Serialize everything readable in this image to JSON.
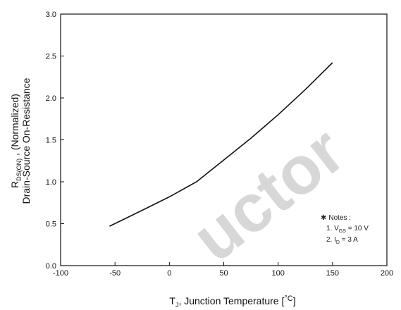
{
  "chart_data": {
    "type": "line",
    "xlabel": {
      "main": "T",
      "sub": "J",
      "rest": ", Junction Temperature [",
      "unit": "°C",
      "end": "]"
    },
    "ylabel": {
      "line1_main": "R",
      "line1_sub": "DS(ON)",
      "line1_rest": " , (Normalized)",
      "line2": "Drain-Source On-Resistance"
    },
    "xlim": [
      -100,
      200
    ],
    "ylim": [
      0.0,
      3.0
    ],
    "xticks": [
      "-100",
      "-50",
      "0",
      "50",
      "100",
      "150",
      "200"
    ],
    "xtick_values": [
      -100,
      -50,
      0,
      50,
      100,
      150,
      200
    ],
    "yticks": [
      "0.0",
      "0.5",
      "1.0",
      "1.5",
      "2.0",
      "2.5",
      "3.0"
    ],
    "ytick_values": [
      0.0,
      0.5,
      1.0,
      1.5,
      2.0,
      2.5,
      3.0
    ],
    "grid": false,
    "series": [
      {
        "x": [
          -55,
          -25,
          0,
          25,
          50,
          75,
          100,
          125,
          150
        ],
        "y": [
          0.47,
          0.66,
          0.82,
          1.0,
          1.26,
          1.52,
          1.8,
          2.1,
          2.42
        ]
      }
    ],
    "notes": {
      "title": "Notes :",
      "star": "✱",
      "line1_prefix": "1. V",
      "line1_sub": "GS",
      "line1_value": " = 10 V",
      "line2_prefix": "2. I",
      "line2_sub": "D",
      "line2_value": " = 3 A"
    },
    "watermark": "uctor",
    "colors": {
      "line": "#111111",
      "axis": "#111111",
      "watermark": "#d7d7d7"
    }
  }
}
